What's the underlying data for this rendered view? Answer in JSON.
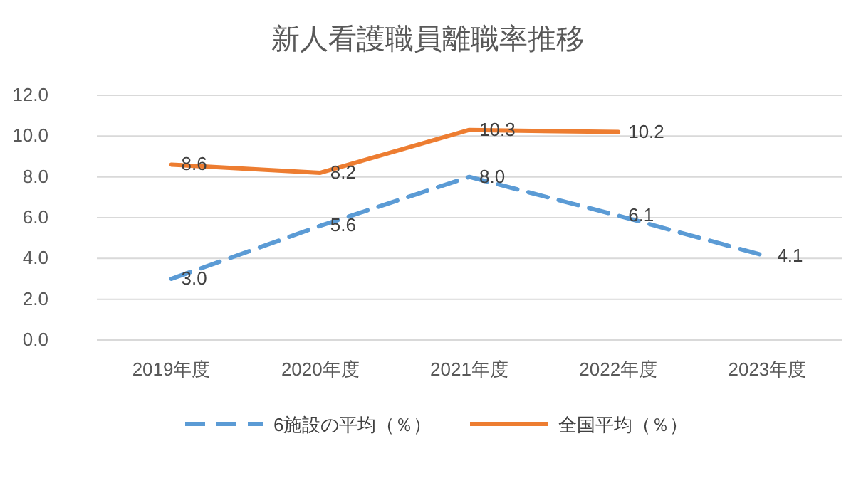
{
  "chart_data": {
    "type": "line",
    "title": "新人看護職員離職率推移",
    "categories": [
      "2019年度",
      "2020年度",
      "2021年度",
      "2022年度",
      "2023年度"
    ],
    "series": [
      {
        "name": "6施設の平均（％）",
        "color": "#5b9bd5",
        "line_style": "dashed",
        "values": [
          3.0,
          5.6,
          8.0,
          6.1,
          4.1
        ],
        "value_labels": [
          "3.0",
          "5.6",
          "8.0",
          "6.1",
          "4.1"
        ]
      },
      {
        "name": "全国平均（％）",
        "color": "#ed7d31",
        "line_style": "solid",
        "values": [
          8.6,
          8.2,
          10.3,
          10.2,
          null
        ],
        "value_labels": [
          "8.6",
          "8.2",
          "10.3",
          "10.2",
          null
        ]
      }
    ],
    "ylim": [
      0,
      12
    ],
    "yticks": [
      {
        "value": 0,
        "label": "0.0"
      },
      {
        "value": 2,
        "label": "2.0"
      },
      {
        "value": 4,
        "label": "4.0"
      },
      {
        "value": 6,
        "label": "6.0"
      },
      {
        "value": 8,
        "label": "8.0"
      },
      {
        "value": 10,
        "label": "10.0"
      },
      {
        "value": 12,
        "label": "12.0"
      }
    ],
    "grid": "y",
    "legend": "bottom",
    "marker": "none"
  }
}
